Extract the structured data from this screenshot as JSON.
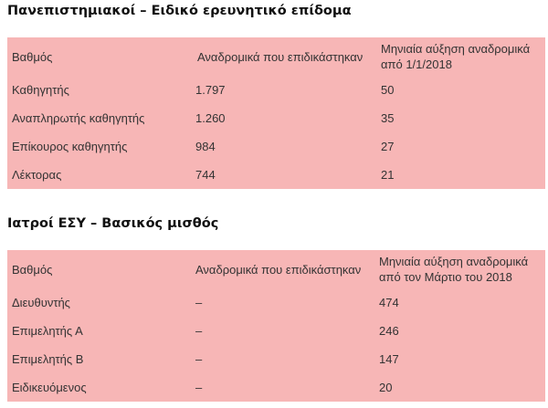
{
  "sections": [
    {
      "title": "Πανεπιστημιακοί – Ειδικό ερευνητικό επίδομα",
      "headers": [
        "Βαθμός",
        "Αναδρομικά που επιδικάστηκαν",
        "Μηνιαία αύξηση αναδρομικά από 1/1/2018"
      ],
      "rows": [
        [
          "Καθηγητής",
          "1.797",
          "50"
        ],
        [
          "Αναπληρωτής καθηγητής",
          "1.260",
          "35"
        ],
        [
          "Επίκουρος καθηγητής",
          "984",
          "27"
        ],
        [
          "Λέκτορας",
          "744",
          "21"
        ]
      ]
    },
    {
      "title": "Ιατροί ΕΣΥ – Βασικός μισθός",
      "headers": [
        "Βαθμός",
        "Αναδρομικά που επιδικάστηκαν",
        "Μηνιαία αύξηση αναδρομικά από τον Μάρτιο του 2018"
      ],
      "rows": [
        [
          "Διευθυντής",
          "–",
          "474"
        ],
        [
          "Επιμελητής Α",
          "–",
          "246"
        ],
        [
          "Επιμελητής Β",
          "–",
          "147"
        ],
        [
          "Ειδικευόμενος",
          "–",
          "20"
        ]
      ]
    }
  ]
}
